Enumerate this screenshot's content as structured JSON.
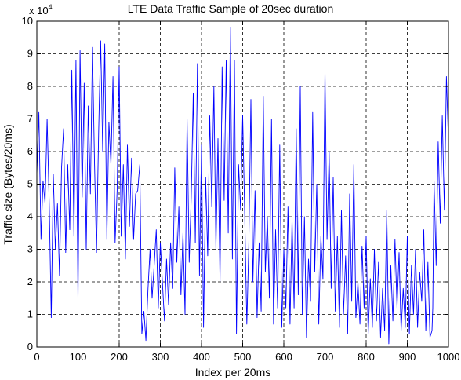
{
  "chart_data": {
    "type": "line",
    "title": "LTE Data Traffic Sample of 20sec duration",
    "xlabel": "Index per 20ms",
    "ylabel": "Traffic size (Bytes/20ms)",
    "exponent_label": "x 10",
    "exponent_power": "4",
    "xlim": [
      0,
      1000
    ],
    "ylim": [
      0,
      10
    ],
    "x_ticks": [
      "0",
      "100",
      "200",
      "300",
      "400",
      "500",
      "600",
      "700",
      "800",
      "900",
      "1000"
    ],
    "y_ticks": [
      "0",
      "1",
      "2",
      "3",
      "4",
      "5",
      "6",
      "7",
      "8",
      "9",
      "10"
    ],
    "grid": true,
    "series_color": "#0000ff",
    "series": [
      {
        "values": [
          {
            "x": 0,
            "y": 5.3
          },
          {
            "x": 5,
            "y": 7.2
          },
          {
            "x": 10,
            "y": 3.3
          },
          {
            "x": 15,
            "y": 5.1
          },
          {
            "x": 20,
            "y": 4.4
          },
          {
            "x": 25,
            "y": 7.0
          },
          {
            "x": 30,
            "y": 4.4
          },
          {
            "x": 35,
            "y": 0.9
          },
          {
            "x": 40,
            "y": 5.3
          },
          {
            "x": 45,
            "y": 3.0
          },
          {
            "x": 50,
            "y": 4.4
          },
          {
            "x": 55,
            "y": 2.2
          },
          {
            "x": 60,
            "y": 5.5
          },
          {
            "x": 65,
            "y": 6.7
          },
          {
            "x": 70,
            "y": 2.9
          },
          {
            "x": 75,
            "y": 5.6
          },
          {
            "x": 80,
            "y": 3.6
          },
          {
            "x": 85,
            "y": 8.5
          },
          {
            "x": 90,
            "y": 3.4
          },
          {
            "x": 95,
            "y": 8.8
          },
          {
            "x": 100,
            "y": 1.4
          },
          {
            "x": 105,
            "y": 9.1
          },
          {
            "x": 110,
            "y": 4.6
          },
          {
            "x": 115,
            "y": 8.1
          },
          {
            "x": 120,
            "y": 3.0
          },
          {
            "x": 125,
            "y": 7.4
          },
          {
            "x": 130,
            "y": 4.7
          },
          {
            "x": 135,
            "y": 9.2
          },
          {
            "x": 140,
            "y": 5.7
          },
          {
            "x": 145,
            "y": 2.9
          },
          {
            "x": 150,
            "y": 6.6
          },
          {
            "x": 155,
            "y": 9.4
          },
          {
            "x": 160,
            "y": 6.0
          },
          {
            "x": 165,
            "y": 9.3
          },
          {
            "x": 170,
            "y": 3.3
          },
          {
            "x": 175,
            "y": 6.9
          },
          {
            "x": 180,
            "y": 5.6
          },
          {
            "x": 185,
            "y": 8.3
          },
          {
            "x": 190,
            "y": 3.2
          },
          {
            "x": 195,
            "y": 4.8
          },
          {
            "x": 200,
            "y": 8.6
          },
          {
            "x": 205,
            "y": 3.4
          },
          {
            "x": 210,
            "y": 5.6
          },
          {
            "x": 215,
            "y": 2.7
          },
          {
            "x": 220,
            "y": 6.2
          },
          {
            "x": 225,
            "y": 3.7
          },
          {
            "x": 230,
            "y": 5.8
          },
          {
            "x": 235,
            "y": 3.3
          },
          {
            "x": 240,
            "y": 4.7
          },
          {
            "x": 245,
            "y": 4.8
          },
          {
            "x": 250,
            "y": 5.6
          },
          {
            "x": 255,
            "y": 0.4
          },
          {
            "x": 260,
            "y": 1.1
          },
          {
            "x": 265,
            "y": 0.2
          },
          {
            "x": 270,
            "y": 1.8
          },
          {
            "x": 275,
            "y": 3.0
          },
          {
            "x": 280,
            "y": 1.5
          },
          {
            "x": 285,
            "y": 2.5
          },
          {
            "x": 290,
            "y": 3.6
          },
          {
            "x": 295,
            "y": 1.2
          },
          {
            "x": 300,
            "y": 3.2
          },
          {
            "x": 305,
            "y": 2.0
          },
          {
            "x": 310,
            "y": 0.8
          },
          {
            "x": 315,
            "y": 2.7
          },
          {
            "x": 320,
            "y": 1.3
          },
          {
            "x": 325,
            "y": 3.2
          },
          {
            "x": 330,
            "y": 1.8
          },
          {
            "x": 335,
            "y": 5.5
          },
          {
            "x": 340,
            "y": 2.6
          },
          {
            "x": 345,
            "y": 4.3
          },
          {
            "x": 350,
            "y": 1.6
          },
          {
            "x": 355,
            "y": 3.5
          },
          {
            "x": 360,
            "y": 1.0
          },
          {
            "x": 365,
            "y": 7.0
          },
          {
            "x": 370,
            "y": 2.6
          },
          {
            "x": 375,
            "y": 4.6
          },
          {
            "x": 380,
            "y": 7.8
          },
          {
            "x": 385,
            "y": 3.2
          },
          {
            "x": 390,
            "y": 8.7
          },
          {
            "x": 395,
            "y": 2.2
          },
          {
            "x": 400,
            "y": 6.2
          },
          {
            "x": 405,
            "y": 0.6
          },
          {
            "x": 410,
            "y": 5.2
          },
          {
            "x": 415,
            "y": 2.8
          },
          {
            "x": 420,
            "y": 7.1
          },
          {
            "x": 425,
            "y": 4.3
          },
          {
            "x": 430,
            "y": 8.0
          },
          {
            "x": 435,
            "y": 3.0
          },
          {
            "x": 440,
            "y": 6.4
          },
          {
            "x": 445,
            "y": 2.0
          },
          {
            "x": 450,
            "y": 8.6
          },
          {
            "x": 455,
            "y": 4.5
          },
          {
            "x": 460,
            "y": 8.8
          },
          {
            "x": 465,
            "y": 3.5
          },
          {
            "x": 470,
            "y": 9.8
          },
          {
            "x": 475,
            "y": 2.7
          },
          {
            "x": 480,
            "y": 8.8
          },
          {
            "x": 485,
            "y": 0.4
          },
          {
            "x": 490,
            "y": 5.6
          },
          {
            "x": 495,
            "y": 4.2
          },
          {
            "x": 500,
            "y": 7.1
          },
          {
            "x": 505,
            "y": 4.1
          },
          {
            "x": 510,
            "y": 0.7
          },
          {
            "x": 515,
            "y": 3.2
          },
          {
            "x": 520,
            "y": 7.6
          },
          {
            "x": 525,
            "y": 2.0
          },
          {
            "x": 530,
            "y": 4.8
          },
          {
            "x": 535,
            "y": 0.9
          },
          {
            "x": 540,
            "y": 3.2
          },
          {
            "x": 545,
            "y": 1.1
          },
          {
            "x": 550,
            "y": 7.7
          },
          {
            "x": 555,
            "y": 2.3
          },
          {
            "x": 560,
            "y": 4.0
          },
          {
            "x": 565,
            "y": 1.5
          },
          {
            "x": 570,
            "y": 7.0
          },
          {
            "x": 575,
            "y": 0.7
          },
          {
            "x": 580,
            "y": 3.6
          },
          {
            "x": 585,
            "y": 1.2
          },
          {
            "x": 590,
            "y": 6.2
          },
          {
            "x": 595,
            "y": 0.6
          },
          {
            "x": 600,
            "y": 3.0
          },
          {
            "x": 605,
            "y": 1.2
          },
          {
            "x": 610,
            "y": 4.3
          },
          {
            "x": 615,
            "y": 0.7
          },
          {
            "x": 620,
            "y": 3.9
          },
          {
            "x": 625,
            "y": 1.2
          },
          {
            "x": 630,
            "y": 6.7
          },
          {
            "x": 635,
            "y": 1.6
          },
          {
            "x": 640,
            "y": 8.0
          },
          {
            "x": 645,
            "y": 1.0
          },
          {
            "x": 650,
            "y": 4.0
          },
          {
            "x": 655,
            "y": 0.3
          },
          {
            "x": 660,
            "y": 2.7
          },
          {
            "x": 665,
            "y": 1.4
          },
          {
            "x": 670,
            "y": 7.2
          },
          {
            "x": 675,
            "y": 2.3
          },
          {
            "x": 680,
            "y": 5.0
          },
          {
            "x": 685,
            "y": 0.7
          },
          {
            "x": 690,
            "y": 3.4
          },
          {
            "x": 695,
            "y": 2.1
          },
          {
            "x": 700,
            "y": 8.5
          },
          {
            "x": 705,
            "y": 3.3
          },
          {
            "x": 710,
            "y": 6.0
          },
          {
            "x": 715,
            "y": 1.8
          },
          {
            "x": 720,
            "y": 5.2
          },
          {
            "x": 725,
            "y": 1.1
          },
          {
            "x": 730,
            "y": 3.4
          },
          {
            "x": 735,
            "y": 0.6
          },
          {
            "x": 740,
            "y": 4.2
          },
          {
            "x": 745,
            "y": 1.0
          },
          {
            "x": 750,
            "y": 2.8
          },
          {
            "x": 755,
            "y": 0.4
          },
          {
            "x": 760,
            "y": 4.7
          },
          {
            "x": 765,
            "y": 1.4
          },
          {
            "x": 770,
            "y": 5.6
          },
          {
            "x": 775,
            "y": 0.9
          },
          {
            "x": 780,
            "y": 2.0
          },
          {
            "x": 785,
            "y": 0.7
          },
          {
            "x": 790,
            "y": 3.1
          },
          {
            "x": 795,
            "y": 1.2
          },
          {
            "x": 800,
            "y": 3.4
          },
          {
            "x": 805,
            "y": 0.4
          },
          {
            "x": 810,
            "y": 2.1
          },
          {
            "x": 815,
            "y": 0.6
          },
          {
            "x": 820,
            "y": 3.0
          },
          {
            "x": 825,
            "y": 0.8
          },
          {
            "x": 830,
            "y": 2.6
          },
          {
            "x": 835,
            "y": 0.3
          },
          {
            "x": 840,
            "y": 1.8
          },
          {
            "x": 845,
            "y": 0.5
          },
          {
            "x": 850,
            "y": 4.2
          },
          {
            "x": 855,
            "y": 0.1
          },
          {
            "x": 860,
            "y": 2.5
          },
          {
            "x": 865,
            "y": 0.8
          },
          {
            "x": 870,
            "y": 3.3
          },
          {
            "x": 875,
            "y": 1.2
          },
          {
            "x": 880,
            "y": 2.9
          },
          {
            "x": 885,
            "y": 0.5
          },
          {
            "x": 890,
            "y": 1.8
          },
          {
            "x": 895,
            "y": 0.6
          },
          {
            "x": 900,
            "y": 3.4
          },
          {
            "x": 905,
            "y": 0.4
          },
          {
            "x": 910,
            "y": 2.5
          },
          {
            "x": 915,
            "y": 1.0
          },
          {
            "x": 920,
            "y": 3.0
          },
          {
            "x": 925,
            "y": 0.6
          },
          {
            "x": 930,
            "y": 2.3
          },
          {
            "x": 935,
            "y": 1.4
          },
          {
            "x": 940,
            "y": 3.6
          },
          {
            "x": 945,
            "y": 0.5
          },
          {
            "x": 950,
            "y": 2.6
          },
          {
            "x": 955,
            "y": 0.3
          },
          {
            "x": 960,
            "y": 0.5
          },
          {
            "x": 962,
            "y": 1.2
          },
          {
            "x": 965,
            "y": 5.1
          },
          {
            "x": 970,
            "y": 2.5
          },
          {
            "x": 975,
            "y": 6.3
          },
          {
            "x": 980,
            "y": 3.8
          },
          {
            "x": 985,
            "y": 7.1
          },
          {
            "x": 990,
            "y": 4.2
          },
          {
            "x": 995,
            "y": 8.3
          },
          {
            "x": 1000,
            "y": 6.3
          }
        ]
      }
    ]
  }
}
